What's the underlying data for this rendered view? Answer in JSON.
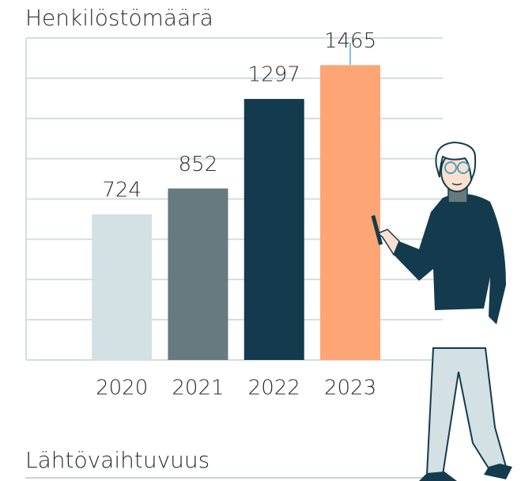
{
  "chart_data": {
    "type": "bar",
    "title": "Henkilöstömäärä",
    "categories": [
      "2020",
      "2021",
      "2022",
      "2023"
    ],
    "values": [
      724,
      852,
      1297,
      1465
    ],
    "colors": [
      "#d3e0e4",
      "#667a7f",
      "#133b4d",
      "#fda574"
    ],
    "ylim": [
      0,
      1600
    ],
    "yticks": [
      0,
      200,
      400,
      600,
      800,
      1000,
      1200,
      1400,
      1600
    ],
    "grid": true
  },
  "next_heading": "Lähtövaihtuvuus"
}
